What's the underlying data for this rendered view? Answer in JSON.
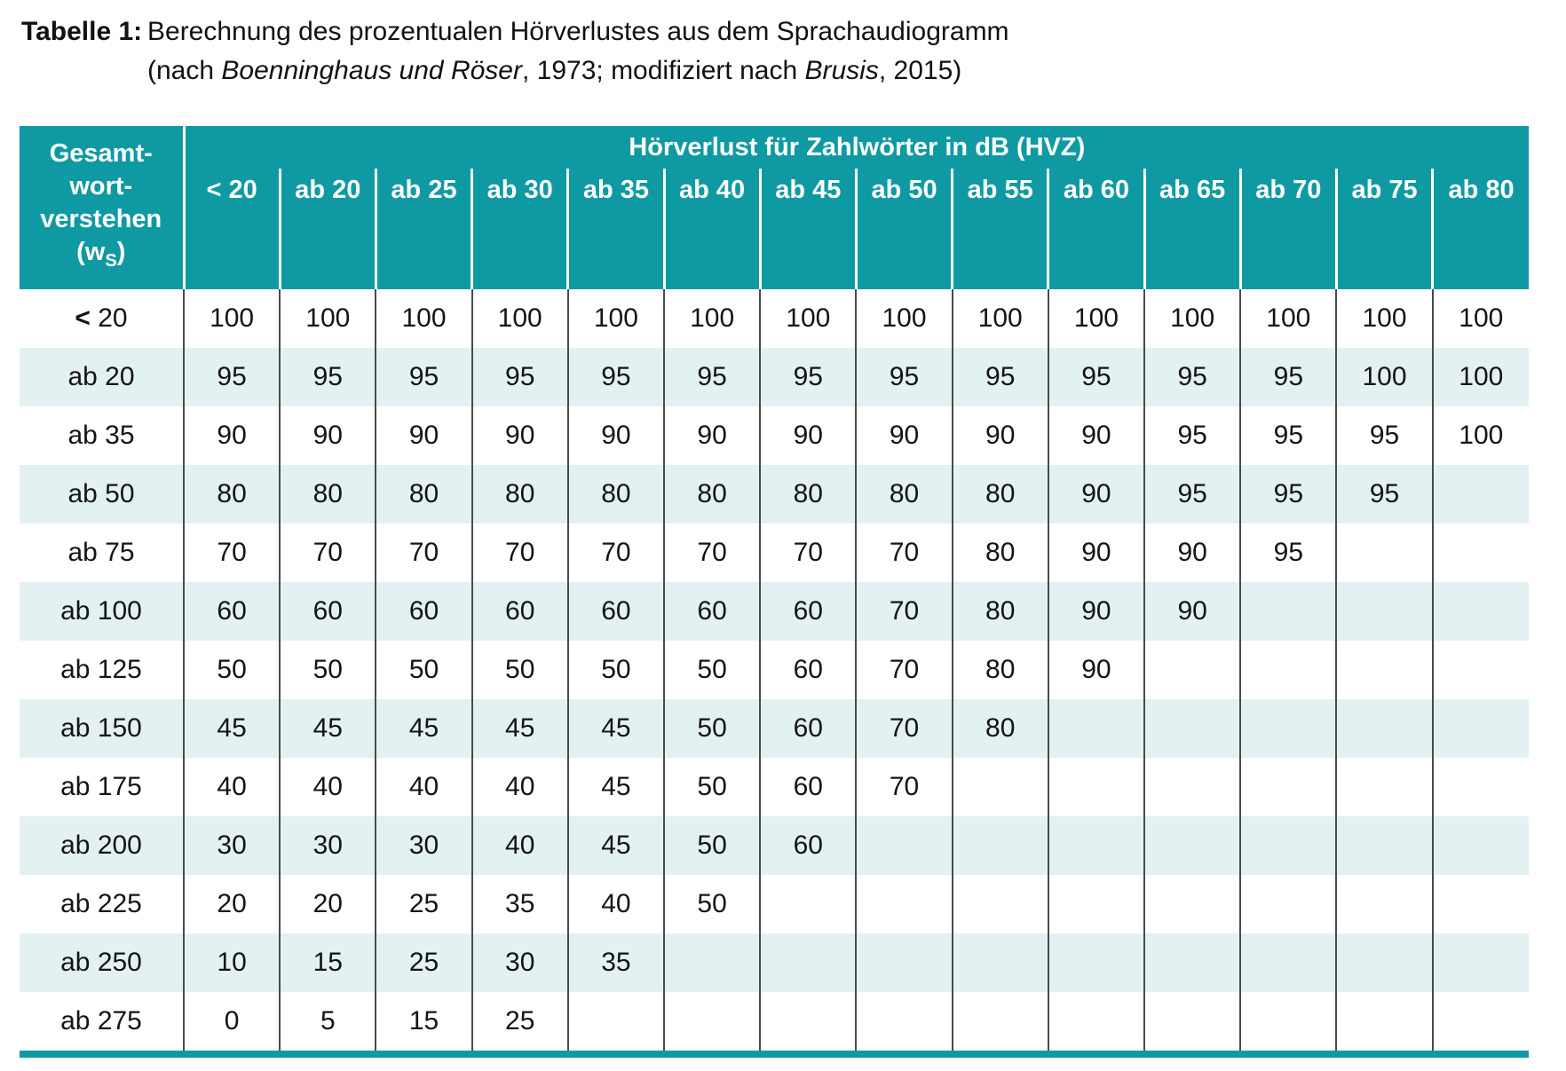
{
  "caption": {
    "label": "Tabelle 1:",
    "line1": "Berechnung des prozentualen Hörverlustes aus dem Sprachaudiogramm",
    "line2": {
      "part1": "(nach ",
      "italic1": "Boenninghaus und Röser",
      "part2": ", 1973; modifiziert nach ",
      "italic2": "Brusis",
      "part3": ", 2015)"
    }
  },
  "table": {
    "corner": {
      "line1": "Gesamt-",
      "line2": "wort-",
      "line3": "verstehen",
      "line4_pre": "(w",
      "line4_sub": "S",
      "line4_post": ")"
    },
    "span_header": "Hörverlust für Zahlwörter in dB (HVZ)",
    "columns": [
      "< 20",
      "ab 20",
      "ab 25",
      "ab 30",
      "ab 35",
      "ab 40",
      "ab 45",
      "ab 50",
      "ab 55",
      "ab 60",
      "ab 65",
      "ab 70",
      "ab 75",
      "ab 80"
    ],
    "rows": [
      {
        "label": "< 20",
        "values": [
          100,
          100,
          100,
          100,
          100,
          100,
          100,
          100,
          100,
          100,
          100,
          100,
          100,
          100
        ]
      },
      {
        "label": "ab 20",
        "values": [
          95,
          95,
          95,
          95,
          95,
          95,
          95,
          95,
          95,
          95,
          95,
          95,
          100,
          100
        ]
      },
      {
        "label": "ab 35",
        "values": [
          90,
          90,
          90,
          90,
          90,
          90,
          90,
          90,
          90,
          90,
          95,
          95,
          95,
          100
        ]
      },
      {
        "label": "ab 50",
        "values": [
          80,
          80,
          80,
          80,
          80,
          80,
          80,
          80,
          80,
          90,
          95,
          95,
          95,
          ""
        ]
      },
      {
        "label": "ab 75",
        "values": [
          70,
          70,
          70,
          70,
          70,
          70,
          70,
          70,
          80,
          90,
          90,
          95,
          "",
          ""
        ]
      },
      {
        "label": "ab 100",
        "values": [
          60,
          60,
          60,
          60,
          60,
          60,
          60,
          70,
          80,
          90,
          90,
          "",
          "",
          ""
        ]
      },
      {
        "label": "ab 125",
        "values": [
          50,
          50,
          50,
          50,
          50,
          50,
          60,
          70,
          80,
          90,
          "",
          "",
          "",
          ""
        ]
      },
      {
        "label": "ab 150",
        "values": [
          45,
          45,
          45,
          45,
          45,
          50,
          60,
          70,
          80,
          "",
          "",
          "",
          "",
          ""
        ]
      },
      {
        "label": "ab 175",
        "values": [
          40,
          40,
          40,
          40,
          45,
          50,
          60,
          70,
          "",
          "",
          "",
          "",
          "",
          ""
        ]
      },
      {
        "label": "ab 200",
        "values": [
          30,
          30,
          30,
          40,
          45,
          50,
          60,
          "",
          "",
          "",
          "",
          "",
          "",
          ""
        ]
      },
      {
        "label": "ab 225",
        "values": [
          20,
          20,
          25,
          35,
          40,
          50,
          "",
          "",
          "",
          "",
          "",
          "",
          "",
          ""
        ]
      },
      {
        "label": "ab 250",
        "values": [
          10,
          15,
          25,
          30,
          35,
          "",
          "",
          "",
          "",
          "",
          "",
          "",
          "",
          ""
        ]
      },
      {
        "label": "ab 275",
        "values": [
          0,
          5,
          15,
          25,
          "",
          "",
          "",
          "",
          "",
          "",
          "",
          "",
          "",
          ""
        ]
      }
    ]
  },
  "colors": {
    "header_teal": "#0f9aa3",
    "row_stripe": "#e4f1f3",
    "grid_line": "#4a4a4a",
    "header_text": "#ffffff",
    "body_text": "#141414"
  }
}
